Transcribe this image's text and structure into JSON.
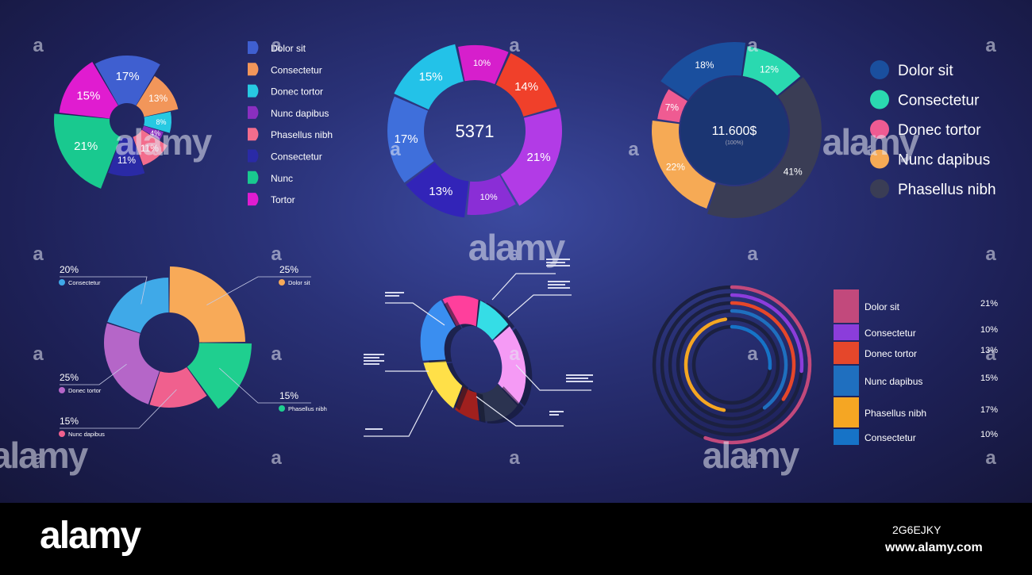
{
  "footer": {
    "brand": "alamy",
    "image_id": "2G6EJKY",
    "url": "www.alamy.com"
  },
  "watermark": {
    "text": "alamy",
    "mark": "a"
  },
  "chart_data": [
    {
      "type": "pie",
      "center_label": "",
      "slices": [
        {
          "name": "Dolor sit",
          "value": 17,
          "label": "17%",
          "color": "#3f5fd0"
        },
        {
          "name": "Consectetur",
          "value": 13,
          "label": "13%",
          "color": "#f2965a"
        },
        {
          "name": "Donec tortor",
          "value": 8,
          "label": "8%",
          "color": "#27c9e2"
        },
        {
          "name": "Nunc dapibus",
          "value": 4,
          "label": "4%",
          "color": "#8a2fc0"
        },
        {
          "name": "Phasellus nibh",
          "value": 11,
          "label": "11%",
          "color": "#f36d8d"
        },
        {
          "name": "Consectetur",
          "value": 11,
          "label": "11%",
          "color": "#2a2aa6"
        },
        {
          "name": "Nunc",
          "value": 21,
          "label": "21%",
          "color": "#19c98f"
        },
        {
          "name": "Tortor",
          "value": 15,
          "label": "15%",
          "color": "#e01cd0"
        }
      ],
      "legend": [
        "Dolor sit",
        "Consectetur",
        "Donec tortor",
        "Nunc dapibus",
        "Phasellus nibh",
        "Consectetur",
        "Nunc",
        "Tortor"
      ]
    },
    {
      "type": "donut",
      "center_label": "5371",
      "slices": [
        {
          "value": 10,
          "label": "10%",
          "color": "#d61fcc"
        },
        {
          "value": 14,
          "label": "14%",
          "color": "#f0402a"
        },
        {
          "value": 21,
          "label": "21%",
          "color": "#b23be6"
        },
        {
          "value": 10,
          "label": "10%",
          "color": "#8a2ed6"
        },
        {
          "value": 13,
          "label": "13%",
          "color": "#3224b8"
        },
        {
          "value": 17,
          "label": "17%",
          "color": "#3f6fdb"
        },
        {
          "value": 15,
          "label": "15%",
          "color": "#23c2e8"
        }
      ]
    },
    {
      "type": "donut",
      "center_label": "11.600$",
      "center_sublabel": "(100%)",
      "slices": [
        {
          "name": "Consectetur",
          "value": 12,
          "label": "12%",
          "color": "#2ad9b0"
        },
        {
          "name": "Phasellus nibh",
          "value": 41,
          "label": "41%",
          "color": "#3a3d55"
        },
        {
          "name": "Nunc dapibus",
          "value": 22,
          "label": "22%",
          "color": "#f6aa55"
        },
        {
          "name": "Donec tortor",
          "value": 7,
          "label": "7%",
          "color": "#ef5b92"
        },
        {
          "name": "Dolor sit",
          "value": 18,
          "label": "18%",
          "color": "#1a4f9e"
        }
      ],
      "legend": [
        {
          "name": "Dolor sit",
          "color": "#1a4f9e"
        },
        {
          "name": "Consectetur",
          "color": "#2ad9b0"
        },
        {
          "name": "Donec tortor",
          "color": "#ef5b92"
        },
        {
          "name": "Nunc dapibus",
          "color": "#f6aa55"
        },
        {
          "name": "Phasellus nibh",
          "color": "#3a3d55"
        }
      ]
    },
    {
      "type": "donut",
      "center_label": "",
      "slices": [
        {
          "name": "Dolor sit",
          "value": 25,
          "label": "25%",
          "color": "#f8aa58"
        },
        {
          "name": "Phasellus nibh",
          "value": 15,
          "label": "15%",
          "color": "#1fcf8f"
        },
        {
          "name": "Nunc dapibus",
          "value": 15,
          "label": "15%",
          "color": "#f0608e"
        },
        {
          "name": "Donec tortor",
          "value": 25,
          "label": "25%",
          "color": "#b566c8"
        },
        {
          "name": "Consectetur",
          "value": 20,
          "label": "20%",
          "color": "#3fa9e8"
        }
      ],
      "callouts": [
        {
          "pct": "20%",
          "name": "Consectetur"
        },
        {
          "pct": "25%",
          "name": "Dolor sit"
        },
        {
          "pct": "25%",
          "name": "Donec tortor"
        },
        {
          "pct": "15%",
          "name": "Phasellus nibh"
        },
        {
          "pct": "15%",
          "name": "Nunc dapibus"
        }
      ]
    },
    {
      "type": "donut-3d",
      "center_label": "",
      "slices": [
        {
          "value": 12,
          "color": "#ff3f9c"
        },
        {
          "value": 10,
          "color": "#35dde6"
        },
        {
          "value": 22,
          "color": "#f59af5"
        },
        {
          "value": 14,
          "color": "#2b3350"
        },
        {
          "value": 8,
          "color": "#a0201e"
        },
        {
          "value": 14,
          "color": "#ffe048"
        },
        {
          "value": 20,
          "color": "#3a8ef0"
        }
      ],
      "callouts": [
        "",
        "",
        "",
        "",
        "",
        "",
        "",
        ""
      ]
    },
    {
      "type": "radial-bar",
      "rows": [
        {
          "name": "Dolor sit",
          "value": 21,
          "label": "21%",
          "color": "#c2497c"
        },
        {
          "name": "Consectetur",
          "value": 10,
          "label": "10%",
          "color": "#8b3ddb"
        },
        {
          "name": "Donec tortor",
          "value": 13,
          "label": "13%",
          "color": "#e5472b"
        },
        {
          "name": "Nunc dapibus",
          "value": 15,
          "label": "15%",
          "color": "#1f6fbf"
        },
        {
          "name": "Phasellus nibh",
          "value": 17,
          "label": "17%",
          "color": "#f5a623"
        },
        {
          "name": "Consectetur",
          "value": 10,
          "label": "10%",
          "color": "#1673c7"
        }
      ],
      "track_color": "#1b2040"
    }
  ]
}
